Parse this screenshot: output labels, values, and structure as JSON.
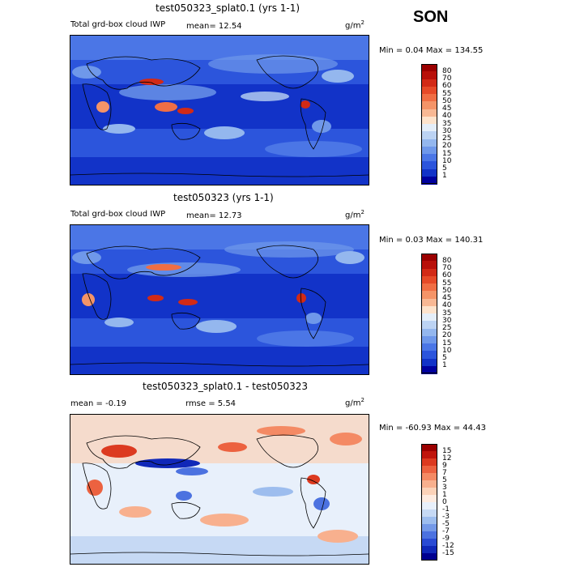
{
  "season": "SON",
  "panels": [
    {
      "title": "test050323_splat0.1 (yrs 1-1)",
      "subtitle": "Total grd-box cloud IWP",
      "mean_text": "mean=  12.54",
      "unit_base": "g/m",
      "unit_exp": "2",
      "min_max": "Min =    0.04 Max = 134.55",
      "colorbar": {
        "labels": [
          "80",
          "70",
          "60",
          "55",
          "50",
          "45",
          "40",
          "35",
          "30",
          "25",
          "20",
          "15",
          "10",
          "5",
          "1"
        ],
        "colors": [
          "#9b0000",
          "#b8100a",
          "#d22a16",
          "#e64a28",
          "#f06e44",
          "#f49468",
          "#f8b894",
          "#fde3cc",
          "#e4eef9",
          "#bcd3f3",
          "#94b7ee",
          "#6f98ea",
          "#4b76e6",
          "#2c55dc",
          "#1233c8",
          "#00009e"
        ]
      }
    },
    {
      "title": "test050323 (yrs 1-1)",
      "subtitle": "Total grd-box cloud IWP",
      "mean_text": "mean=  12.73",
      "unit_base": "g/m",
      "unit_exp": "2",
      "min_max": "Min =    0.03 Max = 140.31",
      "colorbar": {
        "labels": [
          "80",
          "70",
          "60",
          "55",
          "50",
          "45",
          "40",
          "35",
          "30",
          "25",
          "20",
          "15",
          "10",
          "5",
          "1"
        ],
        "colors": [
          "#9b0000",
          "#b8100a",
          "#d22a16",
          "#e64a28",
          "#f06e44",
          "#f49468",
          "#f8b894",
          "#fde3cc",
          "#e4eef9",
          "#bcd3f3",
          "#94b7ee",
          "#6f98ea",
          "#4b76e6",
          "#2c55dc",
          "#1233c8",
          "#00009e"
        ]
      }
    },
    {
      "title": "test050323_splat0.1 - test050323",
      "mean_text": "mean =   -0.19",
      "rmse_text": "rmse =    5.54",
      "unit_base": "g/m",
      "unit_exp": "2",
      "min_max": "Min = -60.93 Max =   44.43",
      "colorbar": {
        "labels": [
          "15",
          "12",
          "9",
          "7",
          "5",
          "3",
          "1",
          "0",
          "-1",
          "-3",
          "-5",
          "-7",
          "-9",
          "-12",
          "-15"
        ],
        "colors": [
          "#9b0000",
          "#c0150c",
          "#dc3a20",
          "#ec6240",
          "#f48a64",
          "#f8b08e",
          "#fbd2b8",
          "#fdebe0",
          "#e8f0fb",
          "#c6d9f4",
          "#9dbdee",
          "#7499e8",
          "#4c72e0",
          "#2a4bd4",
          "#1028b8",
          "#00008f"
        ]
      }
    }
  ],
  "chart_data": [
    {
      "type": "heatmap",
      "title": "test050323_splat0.1 (yrs 1-1)",
      "subtitle": "Total grd-box cloud IWP",
      "mean": 12.54,
      "min": 0.04,
      "max": 134.55,
      "units": "g/m2",
      "contour_levels": [
        1,
        5,
        10,
        15,
        20,
        25,
        30,
        35,
        40,
        45,
        50,
        55,
        60,
        70,
        80
      ]
    },
    {
      "type": "heatmap",
      "title": "test050323 (yrs 1-1)",
      "subtitle": "Total grd-box cloud IWP",
      "mean": 12.73,
      "min": 0.03,
      "max": 140.31,
      "units": "g/m2",
      "contour_levels": [
        1,
        5,
        10,
        15,
        20,
        25,
        30,
        35,
        40,
        45,
        50,
        55,
        60,
        70,
        80
      ]
    },
    {
      "type": "heatmap",
      "title": "test050323_splat0.1 - test050323",
      "mean": -0.19,
      "rmse": 5.54,
      "min": -60.93,
      "max": 44.43,
      "units": "g/m2",
      "contour_levels": [
        -15,
        -12,
        -9,
        -7,
        -5,
        -3,
        -1,
        0,
        1,
        3,
        5,
        7,
        9,
        12,
        15
      ]
    }
  ]
}
